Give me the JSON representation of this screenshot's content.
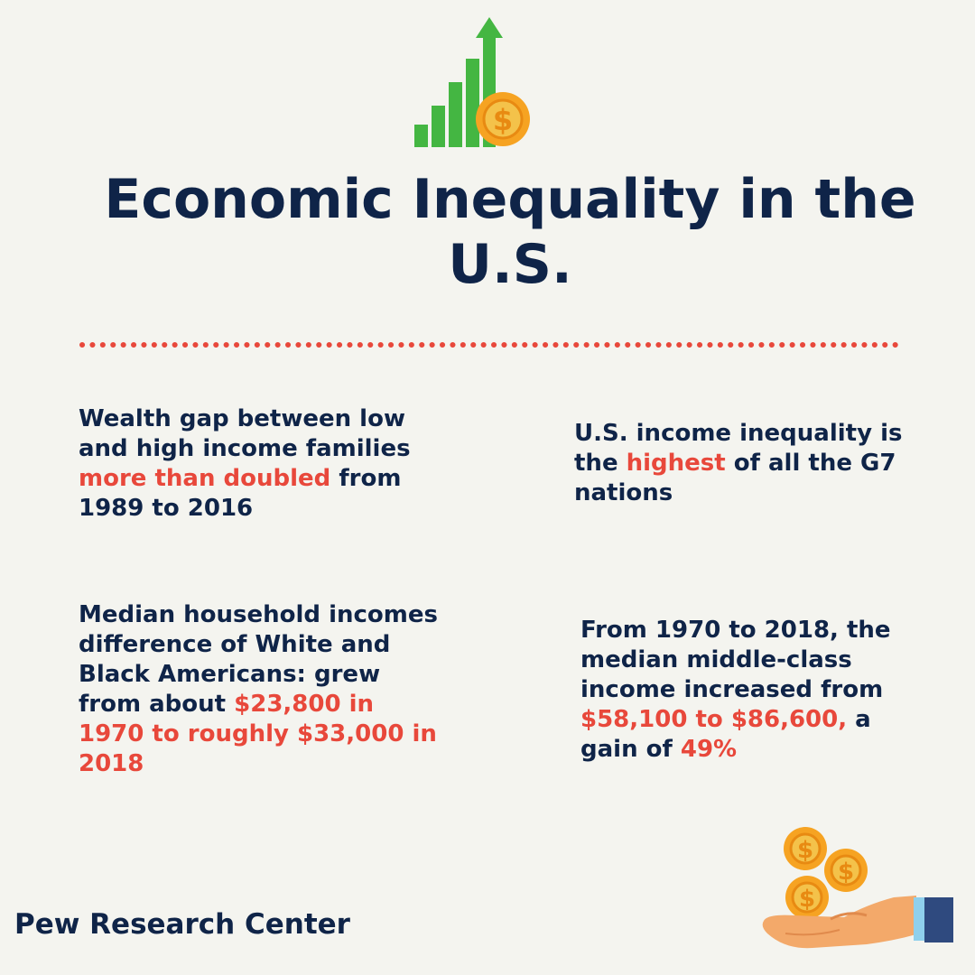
{
  "title": "Economic Inequality in the U.S.",
  "facts": [
    {
      "before": "Wealth gap between low and high income families ",
      "highlight": "more than doubled",
      "after": " from 1989 to 2016"
    },
    {
      "before": "U.S. income inequality is the ",
      "highlight": "highest",
      "after": " of all the G7 nations"
    },
    {
      "before": "Median household incomes difference of White and Black Americans: grew from about ",
      "highlight": "$23,800 in 1970 to roughly $33,000 in 2018",
      "after": ""
    },
    {
      "before": "From 1970 to 2018, the median middle-class income increased from ",
      "highlight": "$58,100 to $86,600,",
      "after": " a gain of ",
      "highlight2": "49%"
    }
  ],
  "source": "Pew Research Center",
  "icons": {
    "top": "growth-chart-coin-icon",
    "bottom": "hand-with-coins-icon",
    "coin_symbol": "$"
  },
  "colors": {
    "background": "#f4f4ef",
    "text": "#0f2448",
    "highlight": "#e8483b",
    "bars": "#44b642",
    "coin": "#f6a322",
    "coin_inner": "#f4c24a",
    "hand": "#f3a96a",
    "sleeve": "#2f4a7f",
    "cuff": "#8fd0ec"
  }
}
